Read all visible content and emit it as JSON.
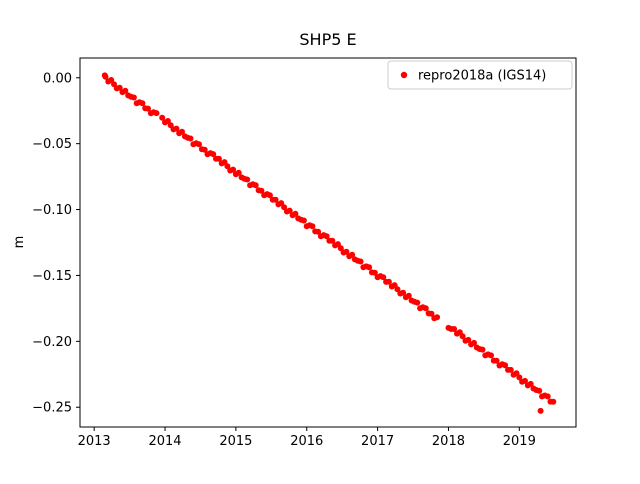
{
  "figure": {
    "background": "#ffffff",
    "frame_color": "#000000"
  },
  "chart_data": {
    "type": "scatter",
    "title": "SHP5 E",
    "xlabel": "",
    "ylabel": "m",
    "xlim": [
      2012.8,
      2019.8
    ],
    "ylim": [
      -0.265,
      0.015
    ],
    "grid": false,
    "x_ticks": [
      2013,
      2014,
      2015,
      2016,
      2017,
      2018,
      2019
    ],
    "x_tick_labels": [
      "2013",
      "2014",
      "2015",
      "2016",
      "2017",
      "2018",
      "2019"
    ],
    "y_ticks": [
      0.0,
      -0.05,
      -0.1,
      -0.15,
      -0.2,
      -0.25
    ],
    "y_tick_labels": [
      "0.00",
      "−0.05",
      "−0.10",
      "−0.15",
      "−0.20",
      "−0.25"
    ],
    "legend": [
      {
        "label": "repro2018a (IGS14)",
        "color": "#ff0000",
        "marker": "point",
        "position": "upper-right"
      }
    ],
    "series": [
      {
        "name": "repro2018a (IGS14)",
        "color": "#ff0000",
        "marker": "point",
        "points": [
          [
            2013.15,
            0.0018
          ],
          [
            2013.16,
            0.0008
          ],
          [
            2013.2,
            -0.0028
          ],
          [
            2013.24,
            -0.0017
          ],
          [
            2013.28,
            -0.0049
          ],
          [
            2013.32,
            -0.0081
          ],
          [
            2013.36,
            -0.0075
          ],
          [
            2013.4,
            -0.0109
          ],
          [
            2013.44,
            -0.0098
          ],
          [
            2013.48,
            -0.0134
          ],
          [
            2013.52,
            -0.0144
          ],
          [
            2013.56,
            -0.015
          ],
          [
            2013.6,
            -0.0193
          ],
          [
            2013.64,
            -0.0186
          ],
          [
            2013.68,
            -0.0193
          ],
          [
            2013.72,
            -0.0232
          ],
          [
            2013.76,
            -0.0234
          ],
          [
            2013.8,
            -0.0269
          ],
          [
            2013.84,
            -0.0261
          ],
          [
            2013.88,
            -0.0268
          ],
          [
            2013.96,
            -0.0303
          ],
          [
            2014.0,
            -0.0339
          ],
          [
            2014.04,
            -0.0328
          ],
          [
            2014.08,
            -0.036
          ],
          [
            2014.12,
            -0.0392
          ],
          [
            2014.16,
            -0.0386
          ],
          [
            2014.2,
            -0.0421
          ],
          [
            2014.24,
            -0.0409
          ],
          [
            2014.28,
            -0.0445
          ],
          [
            2014.32,
            -0.0455
          ],
          [
            2014.36,
            -0.0461
          ],
          [
            2014.4,
            -0.0504
          ],
          [
            2014.44,
            -0.0497
          ],
          [
            2014.48,
            -0.0505
          ],
          [
            2014.52,
            -0.0543
          ],
          [
            2014.56,
            -0.0546
          ],
          [
            2014.6,
            -0.058
          ],
          [
            2014.64,
            -0.0572
          ],
          [
            2014.68,
            -0.0579
          ],
          [
            2014.72,
            -0.0615
          ],
          [
            2014.76,
            -0.0614
          ],
          [
            2014.8,
            -0.065
          ],
          [
            2014.84,
            -0.064
          ],
          [
            2014.88,
            -0.0671
          ],
          [
            2014.92,
            -0.0704
          ],
          [
            2014.96,
            -0.0697
          ],
          [
            2015.0,
            -0.0732
          ],
          [
            2015.04,
            -0.072
          ],
          [
            2015.08,
            -0.0756
          ],
          [
            2015.12,
            -0.0767
          ],
          [
            2015.16,
            -0.0772
          ],
          [
            2015.2,
            -0.0816
          ],
          [
            2015.24,
            -0.0808
          ],
          [
            2015.28,
            -0.0816
          ],
          [
            2015.32,
            -0.0854
          ],
          [
            2015.36,
            -0.0857
          ],
          [
            2015.4,
            -0.0891
          ],
          [
            2015.44,
            -0.0883
          ],
          [
            2015.48,
            -0.0891
          ],
          [
            2015.52,
            -0.0926
          ],
          [
            2015.56,
            -0.0926
          ],
          [
            2015.6,
            -0.0961
          ],
          [
            2015.64,
            -0.0951
          ],
          [
            2015.68,
            -0.0982
          ],
          [
            2015.72,
            -0.1015
          ],
          [
            2015.76,
            -0.1008
          ],
          [
            2015.8,
            -0.1043
          ],
          [
            2015.84,
            -0.1032
          ],
          [
            2015.88,
            -0.1067
          ],
          [
            2015.92,
            -0.1078
          ],
          [
            2015.96,
            -0.1083
          ],
          [
            2016.0,
            -0.1127
          ],
          [
            2016.04,
            -0.1119
          ],
          [
            2016.08,
            -0.1127
          ],
          [
            2016.12,
            -0.1166
          ],
          [
            2016.16,
            -0.1168
          ],
          [
            2016.2,
            -0.1203
          ],
          [
            2016.24,
            -0.1194
          ],
          [
            2016.28,
            -0.1202
          ],
          [
            2016.32,
            -0.1237
          ],
          [
            2016.36,
            -0.1237
          ],
          [
            2016.4,
            -0.1272
          ],
          [
            2016.44,
            -0.1262
          ],
          [
            2016.48,
            -0.1294
          ],
          [
            2016.52,
            -0.1326
          ],
          [
            2016.56,
            -0.132
          ],
          [
            2016.6,
            -0.1354
          ],
          [
            2016.64,
            -0.1343
          ],
          [
            2016.68,
            -0.1378
          ],
          [
            2016.72,
            -0.1389
          ],
          [
            2016.76,
            -0.1394
          ],
          [
            2016.8,
            -0.1438
          ],
          [
            2016.84,
            -0.1431
          ],
          [
            2016.88,
            -0.1438
          ],
          [
            2016.92,
            -0.1477
          ],
          [
            2016.96,
            -0.1479
          ],
          [
            2017.0,
            -0.1514
          ],
          [
            2017.04,
            -0.1505
          ],
          [
            2017.08,
            -0.1513
          ],
          [
            2017.12,
            -0.1549
          ],
          [
            2017.16,
            -0.1548
          ],
          [
            2017.2,
            -0.1584
          ],
          [
            2017.24,
            -0.1573
          ],
          [
            2017.28,
            -0.1605
          ],
          [
            2017.32,
            -0.1637
          ],
          [
            2017.36,
            -0.1631
          ],
          [
            2017.4,
            -0.1665
          ],
          [
            2017.44,
            -0.1654
          ],
          [
            2017.48,
            -0.169
          ],
          [
            2017.52,
            -0.17
          ],
          [
            2017.56,
            -0.1706
          ],
          [
            2017.6,
            -0.1749
          ],
          [
            2017.64,
            -0.1742
          ],
          [
            2017.68,
            -0.1749
          ],
          [
            2017.72,
            -0.1788
          ],
          [
            2017.76,
            -0.179
          ],
          [
            2017.8,
            -0.1825
          ],
          [
            2017.84,
            -0.1817
          ],
          [
            2018.0,
            -0.1898
          ],
          [
            2018.04,
            -0.1906
          ],
          [
            2018.08,
            -0.1906
          ],
          [
            2018.12,
            -0.1941
          ],
          [
            2018.16,
            -0.1931
          ],
          [
            2018.2,
            -0.1962
          ],
          [
            2018.24,
            -0.1995
          ],
          [
            2018.28,
            -0.1989
          ],
          [
            2018.32,
            -0.2023
          ],
          [
            2018.36,
            -0.2012
          ],
          [
            2018.4,
            -0.2047
          ],
          [
            2018.44,
            -0.2058
          ],
          [
            2018.48,
            -0.2063
          ],
          [
            2018.52,
            -0.2107
          ],
          [
            2018.56,
            -0.2099
          ],
          [
            2018.6,
            -0.2107
          ],
          [
            2018.64,
            -0.2146
          ],
          [
            2018.68,
            -0.2148
          ],
          [
            2018.72,
            -0.2183
          ],
          [
            2018.76,
            -0.2174
          ],
          [
            2018.8,
            -0.2182
          ],
          [
            2018.84,
            -0.2217
          ],
          [
            2018.88,
            -0.2217
          ],
          [
            2018.92,
            -0.2253
          ],
          [
            2018.96,
            -0.2242
          ],
          [
            2019.0,
            -0.2274
          ],
          [
            2019.04,
            -0.2306
          ],
          [
            2019.08,
            -0.23
          ],
          [
            2019.12,
            -0.2334
          ],
          [
            2019.16,
            -0.2323
          ],
          [
            2019.2,
            -0.2358
          ],
          [
            2019.24,
            -0.2369
          ],
          [
            2019.28,
            -0.2375
          ],
          [
            2019.3,
            -0.2528
          ],
          [
            2019.32,
            -0.2418
          ],
          [
            2019.36,
            -0.2411
          ],
          [
            2019.4,
            -0.2418
          ],
          [
            2019.44,
            -0.2457
          ],
          [
            2019.48,
            -0.2459
          ]
        ]
      }
    ]
  }
}
